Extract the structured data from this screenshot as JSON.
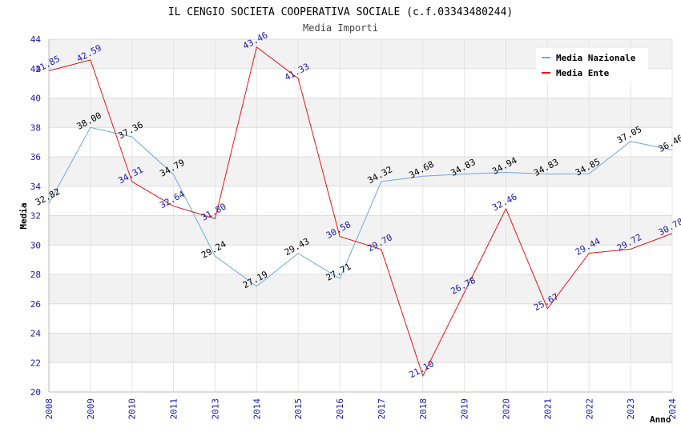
{
  "chart_data": {
    "type": "line",
    "title": "IL CENGIO SOCIETA COOPERATIVA SOCIALE (c.f.03343480244)",
    "subtitle": "Media Importi",
    "xlabel": "Anno",
    "ylabel": "Media",
    "ylim": [
      20,
      44
    ],
    "ytick_step": 2,
    "grid": true,
    "legend_position": "top-right",
    "x": [
      "2008",
      "2009",
      "2010",
      "2011",
      "2013",
      "2014",
      "2015",
      "2016",
      "2017",
      "2018",
      "2019",
      "2020",
      "2021",
      "2022",
      "2023",
      "2024"
    ],
    "series": [
      {
        "name": "Media Nazionale",
        "color": "#6fa8dc",
        "values": [
          32.82,
          38.0,
          37.36,
          34.79,
          29.24,
          27.19,
          29.43,
          27.71,
          34.32,
          34.68,
          34.83,
          34.94,
          34.83,
          34.85,
          37.05,
          36.46
        ],
        "labels": [
          "32.82",
          "38.00",
          "37.36",
          "34.79",
          "29.24",
          "27.19",
          "29.43",
          "27.71",
          "34.32",
          "34.68",
          "34.83",
          "34.94",
          "34.83",
          "34.85",
          "37.05",
          "36.46"
        ]
      },
      {
        "name": "Media Ente",
        "color": "#e0191b",
        "values": [
          41.85,
          42.59,
          34.31,
          32.64,
          31.8,
          43.46,
          41.33,
          30.58,
          29.7,
          21.1,
          26.78,
          32.46,
          25.67,
          29.44,
          29.72,
          30.78
        ],
        "labels": [
          "41.85",
          "42.59",
          "34.31",
          "32.64",
          "31.80",
          "43.46",
          "41.33",
          "30.58",
          "29.70",
          "21.10",
          "26.78",
          "32.46",
          "25.67",
          "29.44",
          "29.72",
          "30.78"
        ]
      }
    ]
  }
}
